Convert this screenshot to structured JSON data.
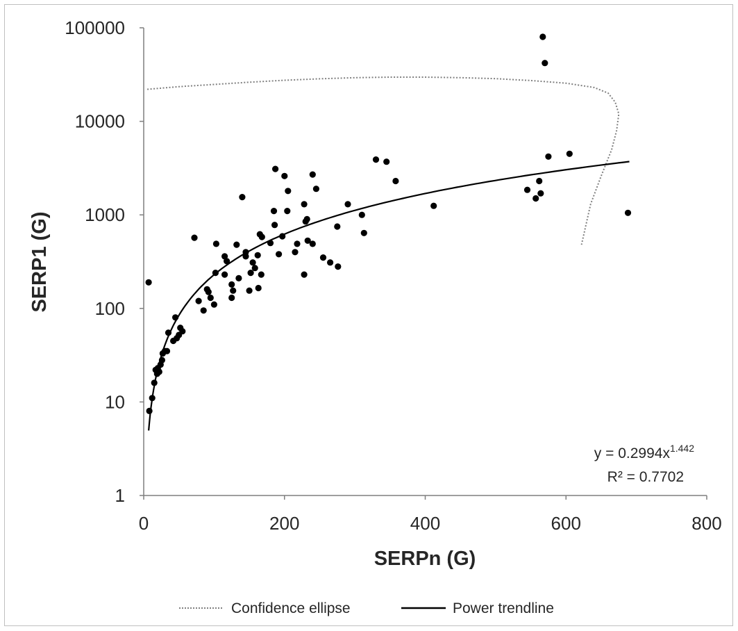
{
  "chart_data": {
    "type": "scatter",
    "xlabel": "SERPn (G)",
    "ylabel": "SERP1 (G)",
    "xlim": [
      0,
      800
    ],
    "ylim": [
      1,
      100000
    ],
    "yscale": "log",
    "x_ticks": [
      "0",
      "200",
      "400",
      "600",
      "800"
    ],
    "y_ticks": [
      "1",
      "10",
      "100",
      "1000",
      "10000",
      "100000"
    ],
    "grid": false,
    "legend_position": "bottom",
    "legend": [
      {
        "label": "Confidence ellipse",
        "style": "dotted"
      },
      {
        "label": "Power trendline",
        "style": "solid"
      }
    ],
    "annotation": {
      "equation_prefix": "y = 0.2994x",
      "equation_exponent": "1.442",
      "r_squared": "R² = 0.7702"
    },
    "trendline": {
      "type": "power",
      "coefficient": 0.2994,
      "exponent": 1.442,
      "x_range": [
        7,
        690
      ]
    },
    "ellipse_points": [
      [
        5,
        22000
      ],
      [
        50,
        23500
      ],
      [
        100,
        24800
      ],
      [
        150,
        26200
      ],
      [
        200,
        27500
      ],
      [
        250,
        28500
      ],
      [
        300,
        29300
      ],
      [
        350,
        29700
      ],
      [
        400,
        29700
      ],
      [
        450,
        29300
      ],
      [
        500,
        28600
      ],
      [
        550,
        27300
      ],
      [
        600,
        25600
      ],
      [
        640,
        23000
      ],
      [
        660,
        20000
      ],
      [
        670,
        16000
      ],
      [
        675,
        12000
      ],
      [
        672,
        8000
      ],
      [
        665,
        5000
      ],
      [
        650,
        2600
      ],
      [
        635,
        1300
      ],
      [
        622,
        480
      ]
    ],
    "series": [
      {
        "points": [
          [
            7,
            190
          ],
          [
            8,
            8
          ],
          [
            12,
            11
          ],
          [
            15,
            16
          ],
          [
            17,
            22
          ],
          [
            19,
            20
          ],
          [
            20,
            23
          ],
          [
            22,
            21
          ],
          [
            24,
            25
          ],
          [
            26,
            28
          ],
          [
            27,
            33
          ],
          [
            30,
            35
          ],
          [
            33,
            35
          ],
          [
            35,
            55
          ],
          [
            42,
            45
          ],
          [
            45,
            80
          ],
          [
            47,
            48
          ],
          [
            50,
            52
          ],
          [
            52,
            62
          ],
          [
            55,
            57
          ],
          [
            72,
            570
          ],
          [
            78,
            120
          ],
          [
            85,
            95
          ],
          [
            90,
            160
          ],
          [
            92,
            150
          ],
          [
            95,
            130
          ],
          [
            100,
            110
          ],
          [
            102,
            240
          ],
          [
            103,
            490
          ],
          [
            115,
            230
          ],
          [
            115,
            360
          ],
          [
            118,
            320
          ],
          [
            125,
            130
          ],
          [
            125,
            180
          ],
          [
            127,
            155
          ],
          [
            132,
            480
          ],
          [
            135,
            210
          ],
          [
            140,
            1550
          ],
          [
            145,
            360
          ],
          [
            145,
            400
          ],
          [
            150,
            155
          ],
          [
            152,
            240
          ],
          [
            155,
            310
          ],
          [
            158,
            270
          ],
          [
            162,
            370
          ],
          [
            163,
            165
          ],
          [
            165,
            620
          ],
          [
            167,
            230
          ],
          [
            168,
            580
          ],
          [
            180,
            500
          ],
          [
            185,
            1100
          ],
          [
            186,
            780
          ],
          [
            187,
            3100
          ],
          [
            192,
            380
          ],
          [
            197,
            590
          ],
          [
            200,
            2600
          ],
          [
            204,
            1100
          ],
          [
            205,
            1800
          ],
          [
            215,
            400
          ],
          [
            218,
            490
          ],
          [
            228,
            1300
          ],
          [
            228,
            230
          ],
          [
            230,
            850
          ],
          [
            232,
            900
          ],
          [
            233,
            530
          ],
          [
            240,
            490
          ],
          [
            240,
            2700
          ],
          [
            245,
            1900
          ],
          [
            255,
            350
          ],
          [
            265,
            310
          ],
          [
            275,
            750
          ],
          [
            276,
            280
          ],
          [
            290,
            1300
          ],
          [
            310,
            1000
          ],
          [
            313,
            640
          ],
          [
            330,
            3900
          ],
          [
            345,
            3700
          ],
          [
            358,
            2300
          ],
          [
            412,
            1250
          ],
          [
            545,
            1850
          ],
          [
            557,
            1500
          ],
          [
            562,
            2300
          ],
          [
            564,
            1700
          ],
          [
            567,
            80000
          ],
          [
            570,
            42000
          ],
          [
            575,
            4200
          ],
          [
            605,
            4500
          ],
          [
            688,
            1050
          ]
        ]
      }
    ]
  }
}
